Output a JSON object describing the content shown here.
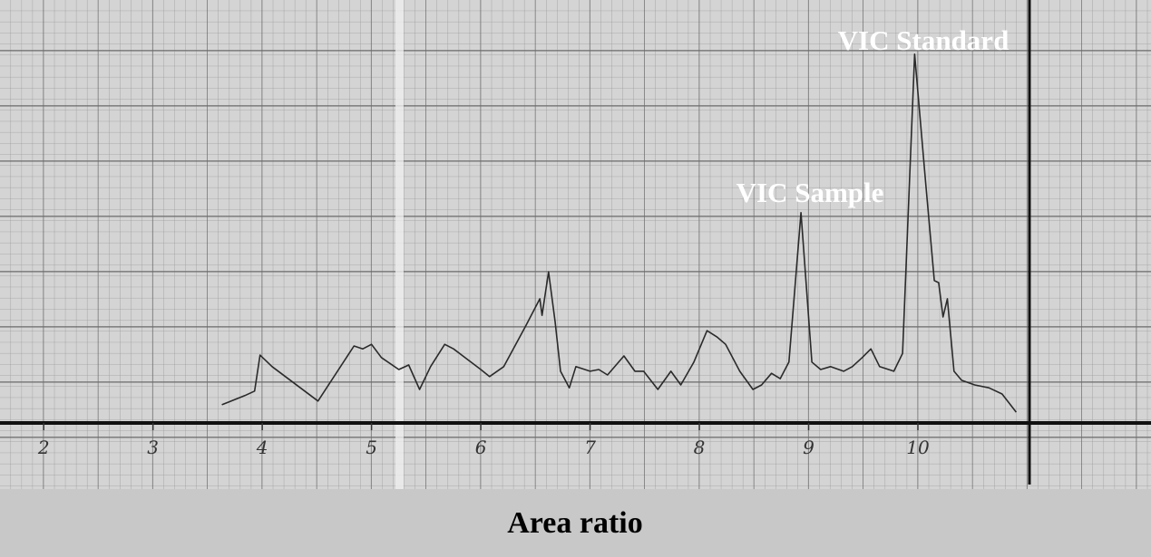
{
  "chart_data": {
    "type": "line",
    "caption": "Area ratio",
    "annotations": [
      "VIC Standard",
      "VIC Sample"
    ],
    "color": "#2a2a2a",
    "xlim": [
      1.6,
      12.1
    ],
    "xticks": [
      2,
      3,
      4,
      5,
      6,
      7,
      8,
      9,
      10
    ],
    "ylim": [
      0,
      100
    ],
    "x": [
      3.63,
      3.84,
      3.93,
      3.98,
      4.09,
      4.51,
      4.84,
      4.92,
      5.0,
      5.09,
      5.25,
      5.34,
      5.44,
      5.54,
      5.67,
      5.75,
      6.0,
      6.08,
      6.21,
      6.41,
      6.54,
      6.56,
      6.62,
      6.68,
      6.73,
      6.81,
      6.87,
      7.0,
      7.08,
      7.16,
      7.31,
      7.41,
      7.49,
      7.62,
      7.74,
      7.83,
      7.95,
      8.07,
      8.16,
      8.24,
      8.37,
      8.49,
      8.57,
      8.66,
      8.74,
      8.82,
      8.93,
      9.03,
      9.11,
      9.2,
      9.32,
      9.4,
      9.49,
      9.57,
      9.65,
      9.78,
      9.86,
      9.97,
      10.07,
      10.15,
      10.19,
      10.23,
      10.27,
      10.33,
      10.4,
      10.52,
      10.65,
      10.77,
      10.9
    ],
    "values": [
      4.4,
      6.6,
      7.7,
      16.4,
      13.6,
      5.3,
      18.6,
      17.9,
      19.0,
      15.8,
      12.9,
      14.0,
      8.1,
      13.6,
      19.0,
      17.9,
      12.9,
      11.2,
      13.6,
      23.4,
      30.0,
      26.0,
      36.5,
      24.5,
      12.5,
      8.5,
      13.6,
      12.5,
      12.9,
      11.6,
      16.2,
      12.5,
      12.5,
      8.1,
      12.5,
      9.2,
      14.7,
      22.3,
      20.8,
      19.0,
      12.5,
      8.1,
      9.2,
      12.0,
      10.7,
      14.7,
      50.8,
      14.7,
      12.9,
      13.6,
      12.5,
      13.6,
      15.8,
      17.9,
      13.6,
      12.5,
      16.8,
      89.1,
      58.4,
      34.4,
      33.9,
      25.6,
      30.0,
      12.5,
      10.3,
      9.2,
      8.5,
      7.0,
      2.6
    ]
  }
}
